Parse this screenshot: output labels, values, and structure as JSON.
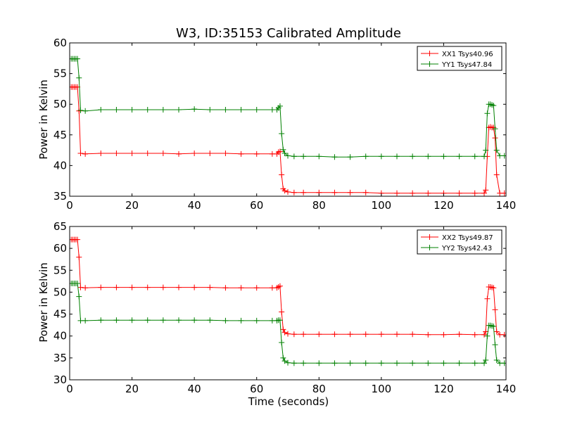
{
  "figure": {
    "title": "W3, ID:35153 Calibrated Amplitude",
    "xlabel": "Time (seconds)"
  },
  "chart_data": [
    {
      "type": "line",
      "title": "W3, ID:35153 Calibrated Amplitude",
      "xlabel": "",
      "ylabel": "Power in Kelvin",
      "xlim": [
        0,
        140
      ],
      "ylim": [
        35,
        60
      ],
      "xticks": [
        "0",
        "20",
        "40",
        "60",
        "80",
        "100",
        "120",
        "140"
      ],
      "yticks": [
        "35",
        "40",
        "45",
        "50",
        "55",
        "60"
      ],
      "grid": false,
      "legend_position": "top-right",
      "series": [
        {
          "name": "XX1 Tsys40.96",
          "color": "#ff0000",
          "marker": "+",
          "x": [
            0.5,
            1,
            1.5,
            2,
            2.5,
            3,
            3.5,
            5,
            10,
            15,
            20,
            25,
            30,
            35,
            40,
            45,
            50,
            55,
            60,
            65,
            66.5,
            67,
            67.5,
            68,
            68.5,
            69,
            70,
            72,
            75,
            80,
            85,
            90,
            95,
            100,
            105,
            110,
            115,
            120,
            125,
            130,
            133,
            133.5,
            134,
            134.5,
            135,
            135.5,
            136,
            136.5,
            137,
            138,
            139.5
          ],
          "y": [
            52.8,
            52.8,
            52.8,
            52.8,
            52.8,
            48.9,
            42.0,
            41.9,
            42.0,
            42.0,
            42.0,
            42.0,
            42.0,
            41.9,
            42.0,
            42.0,
            42.0,
            41.9,
            41.9,
            41.9,
            41.9,
            42.2,
            42.3,
            38.5,
            36.2,
            35.9,
            35.7,
            35.6,
            35.6,
            35.6,
            35.6,
            35.6,
            35.6,
            35.5,
            35.5,
            35.5,
            35.5,
            35.5,
            35.5,
            35.5,
            35.5,
            36.0,
            41.5,
            46.2,
            46.3,
            46.2,
            46.2,
            44.5,
            38.5,
            35.5,
            35.5
          ]
        },
        {
          "name": "YY1 Tsys47.84",
          "color": "#008000",
          "marker": "+",
          "x": [
            0.5,
            1,
            1.5,
            2,
            2.5,
            3,
            3.5,
            5,
            10,
            15,
            20,
            25,
            30,
            35,
            40,
            45,
            50,
            55,
            60,
            65,
            66.5,
            67,
            67.5,
            68,
            68.5,
            69,
            70,
            72,
            75,
            80,
            85,
            90,
            95,
            100,
            105,
            110,
            115,
            120,
            125,
            130,
            133,
            133.5,
            134,
            134.5,
            135,
            135.5,
            136,
            136.5,
            137,
            138,
            139.5
          ],
          "y": [
            57.4,
            57.4,
            57.4,
            57.4,
            57.4,
            54.3,
            49.0,
            48.9,
            49.1,
            49.1,
            49.1,
            49.1,
            49.1,
            49.1,
            49.2,
            49.1,
            49.1,
            49.1,
            49.1,
            49.1,
            49.1,
            49.4,
            49.7,
            45.2,
            42.6,
            42.0,
            41.6,
            41.5,
            41.5,
            41.5,
            41.4,
            41.4,
            41.5,
            41.5,
            41.5,
            41.5,
            41.5,
            41.5,
            41.5,
            41.5,
            41.5,
            42.5,
            48.5,
            50.0,
            50.0,
            49.9,
            49.8,
            46.0,
            42.5,
            41.6,
            41.6
          ]
        }
      ]
    },
    {
      "type": "line",
      "title": "",
      "xlabel": "Time (seconds)",
      "ylabel": "Power in Kelvin",
      "xlim": [
        0,
        140
      ],
      "ylim": [
        30,
        65
      ],
      "xticks": [
        "0",
        "20",
        "40",
        "60",
        "80",
        "100",
        "120",
        "140"
      ],
      "yticks": [
        "30",
        "35",
        "40",
        "45",
        "50",
        "55",
        "60",
        "65"
      ],
      "grid": false,
      "legend_position": "top-right",
      "series": [
        {
          "name": "XX2 Tsys49.87",
          "color": "#ff0000",
          "marker": "+",
          "x": [
            0.5,
            1,
            1.5,
            2,
            2.5,
            3,
            3.5,
            5,
            10,
            15,
            20,
            25,
            30,
            35,
            40,
            45,
            50,
            55,
            60,
            65,
            66.5,
            67,
            67.5,
            68,
            68.5,
            69,
            70,
            72,
            75,
            80,
            85,
            90,
            95,
            100,
            105,
            110,
            115,
            120,
            125,
            130,
            133,
            133.5,
            134,
            134.5,
            135,
            135.5,
            136,
            136.5,
            137,
            138,
            139.5
          ],
          "y": [
            62.0,
            62.0,
            62.0,
            62.0,
            62.0,
            58.0,
            51.1,
            51.0,
            51.1,
            51.1,
            51.1,
            51.1,
            51.1,
            51.1,
            51.1,
            51.1,
            51.0,
            51.0,
            51.0,
            51.0,
            51.0,
            51.2,
            51.4,
            45.5,
            41.5,
            40.8,
            40.5,
            40.4,
            40.4,
            40.4,
            40.4,
            40.4,
            40.4,
            40.4,
            40.4,
            40.4,
            40.3,
            40.3,
            40.4,
            40.3,
            40.3,
            41.0,
            48.5,
            51.2,
            51.2,
            51.1,
            51.0,
            46.0,
            41.0,
            40.3,
            40.3
          ]
        },
        {
          "name": "YY2 Tsys42.43",
          "color": "#008000",
          "marker": "+",
          "x": [
            0.5,
            1,
            1.5,
            2,
            2.5,
            3,
            3.5,
            5,
            10,
            15,
            20,
            25,
            30,
            35,
            40,
            45,
            50,
            55,
            60,
            65,
            66.5,
            67,
            67.5,
            68,
            68.5,
            69,
            70,
            72,
            75,
            80,
            85,
            90,
            95,
            100,
            105,
            110,
            115,
            120,
            125,
            130,
            133,
            133.5,
            134,
            134.5,
            135,
            135.5,
            136,
            136.5,
            137,
            138,
            139.5
          ],
          "y": [
            52.0,
            52.0,
            52.0,
            52.0,
            52.0,
            49.0,
            43.5,
            43.5,
            43.6,
            43.6,
            43.6,
            43.6,
            43.6,
            43.6,
            43.6,
            43.6,
            43.5,
            43.5,
            43.5,
            43.5,
            43.5,
            43.6,
            43.6,
            38.5,
            35.0,
            34.3,
            33.9,
            33.8,
            33.8,
            33.8,
            33.8,
            33.8,
            33.8,
            33.8,
            33.8,
            33.8,
            33.8,
            33.8,
            33.8,
            33.8,
            33.8,
            34.5,
            40.0,
            42.4,
            42.4,
            42.3,
            42.2,
            38.0,
            34.5,
            33.8,
            33.8
          ]
        }
      ]
    }
  ]
}
